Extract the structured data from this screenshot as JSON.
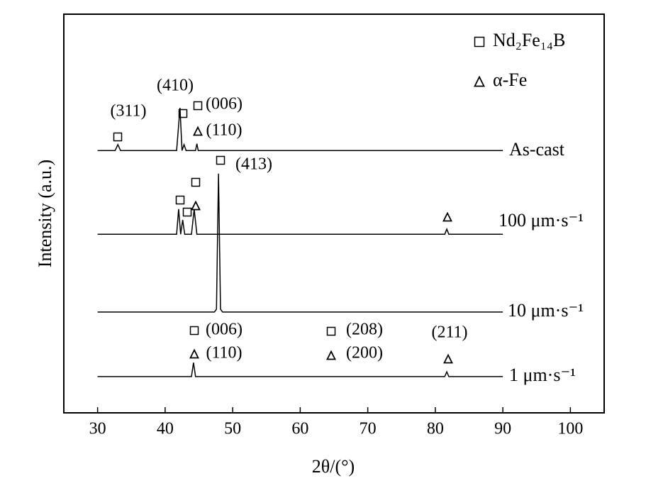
{
  "chart_data": {
    "type": "line",
    "xlabel": "2θ/(°)",
    "ylabel": "Intensity (a.u.)",
    "xlim": [
      25,
      105
    ],
    "xticks": [
      30,
      40,
      50,
      60,
      70,
      80,
      90,
      100
    ],
    "ylim": [
      0,
      100
    ],
    "color": "#000000",
    "legend": [
      "Nd₂Fe₁₄B",
      "α-Fe"
    ],
    "annotations": [
      "(311)",
      "(410)",
      "(006)",
      "(110)",
      "(413)",
      "(006)",
      "(110)",
      "(208)",
      "(200)",
      "(211)"
    ],
    "series": [
      {
        "name": "As-cast",
        "x": [
          30,
          32.6,
          33,
          33.4,
          41.7,
          42.2,
          42.5,
          42.8,
          43.1,
          44.5,
          44.7,
          44.9,
          90
        ],
        "values": [
          65.8,
          65.8,
          67.3,
          65.8,
          65.8,
          76.5,
          65.8,
          67.3,
          65.8,
          65.8,
          67.5,
          65.8,
          65.8
        ]
      },
      {
        "name": "100 μm·s⁻¹",
        "x": [
          30,
          41.7,
          42.0,
          42.3,
          42.6,
          42.9,
          43.9,
          44.3,
          44.7,
          81.4,
          81.7,
          82.0,
          90
        ],
        "values": [
          44.8,
          44.8,
          51.1,
          44.8,
          48.4,
          44.8,
          44.8,
          51.1,
          44.8,
          44.8,
          46.1,
          44.8,
          44.8
        ]
      },
      {
        "name": "10 μm·s⁻¹",
        "x": [
          30,
          47.3,
          47.6,
          47.9,
          48.2,
          48.5,
          90
        ],
        "values": [
          25.3,
          25.3,
          26,
          60,
          26,
          25.3,
          25.3
        ]
      },
      {
        "name": "1 μm·s⁻¹",
        "x": [
          30,
          43.9,
          44.2,
          44.5,
          81.4,
          81.7,
          82.0,
          90
        ],
        "values": [
          9.1,
          9.1,
          12.6,
          9.1,
          9.1,
          10.3,
          9.1,
          9.1
        ]
      }
    ]
  }
}
